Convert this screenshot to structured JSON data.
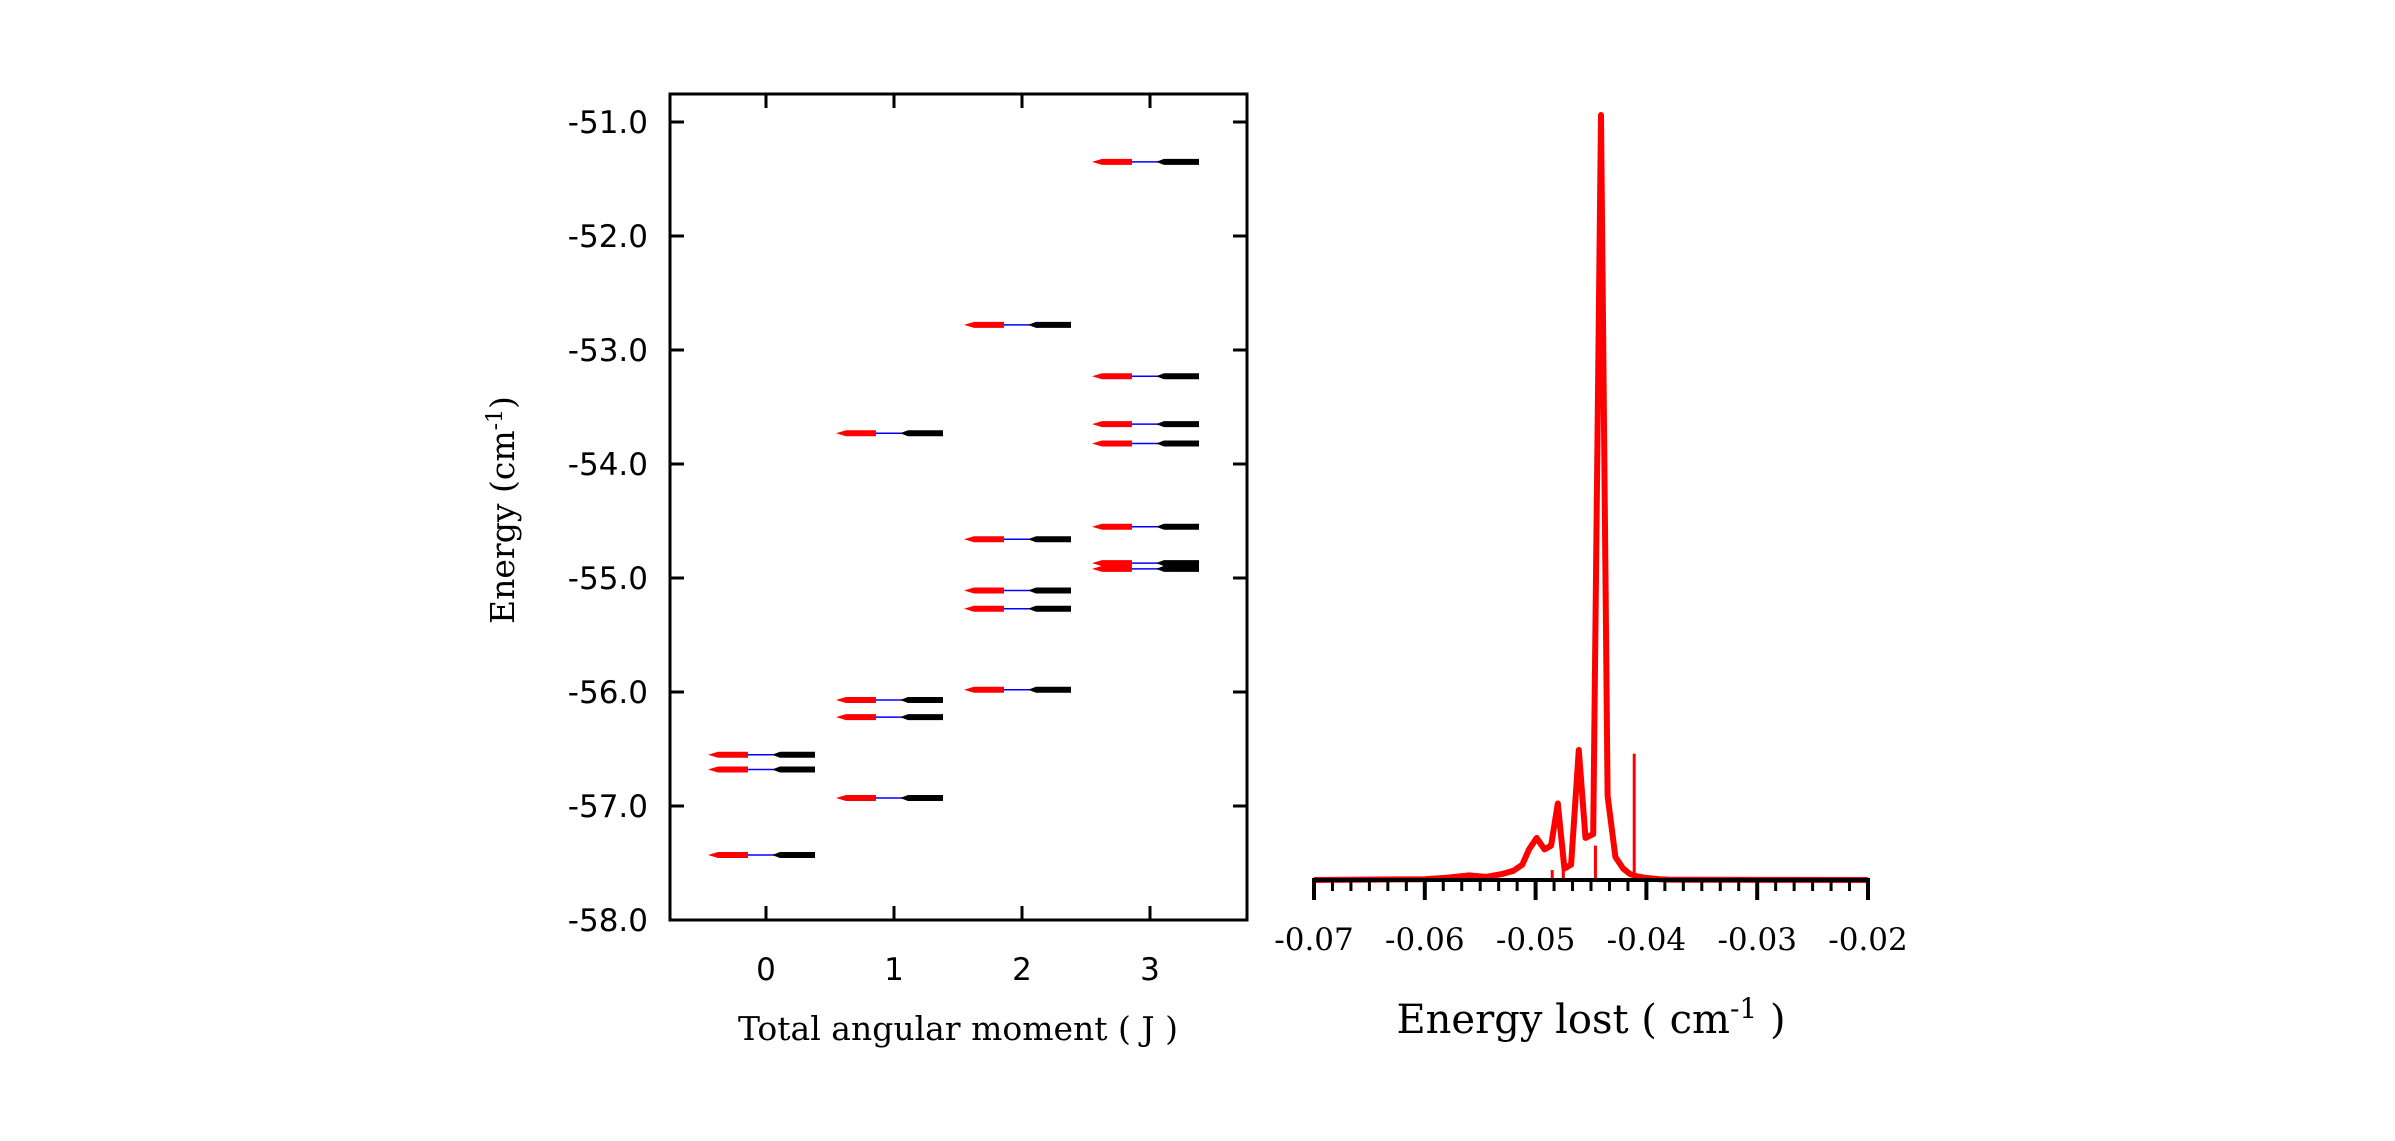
{
  "colors": {
    "red": "#ff0000",
    "black": "#000000",
    "blue": "#0000ff"
  },
  "chart_data": [
    {
      "type": "scatter",
      "xlabel": "Total angular moment ( J )",
      "ylabel": {
        "text": "Energy (cm",
        "sup": "-1",
        "tail": ")"
      },
      "ylim": [
        -58.0,
        -50.75
      ],
      "xlim": [
        -0.75,
        3.75
      ],
      "x_ticks": [
        "0",
        "1",
        "2",
        "3"
      ],
      "y_ticks": [
        "-51.0",
        "-52.0",
        "-53.0",
        "-54.0",
        "-55.0",
        "-56.0",
        "-57.0",
        "-58.0"
      ],
      "grid": false,
      "levels": [
        {
          "J": 0,
          "red": -56.55,
          "black": -56.55
        },
        {
          "J": 0,
          "red": -56.68,
          "black": -56.68
        },
        {
          "J": 0,
          "red": -57.43,
          "black": -57.43
        },
        {
          "J": 1,
          "red": -53.73,
          "black": -53.73
        },
        {
          "J": 1,
          "red": -56.07,
          "black": -56.07
        },
        {
          "J": 1,
          "red": -56.22,
          "black": -56.22
        },
        {
          "J": 1,
          "red": -56.93,
          "black": -56.93
        },
        {
          "J": 2,
          "red": -52.78,
          "black": -52.78
        },
        {
          "J": 2,
          "red": -54.66,
          "black": -54.66
        },
        {
          "J": 2,
          "red": -55.11,
          "black": -55.11
        },
        {
          "J": 2,
          "red": -55.27,
          "black": -55.27
        },
        {
          "J": 2,
          "red": -55.98,
          "black": -55.98
        },
        {
          "J": 3,
          "red": -51.35,
          "black": -51.35
        },
        {
          "J": 3,
          "red": -53.23,
          "black": -53.23
        },
        {
          "J": 3,
          "red": -53.65,
          "black": -53.65
        },
        {
          "J": 3,
          "red": -53.82,
          "black": -53.82
        },
        {
          "J": 3,
          "red": -54.55,
          "black": -54.55
        },
        {
          "J": 3,
          "red": -54.87,
          "black": -54.87
        },
        {
          "J": 3,
          "red": -54.92,
          "black": -54.92
        }
      ]
    },
    {
      "type": "line",
      "xlabel": {
        "text": "Energy lost ( cm",
        "sup": "-1",
        "tail": " )"
      },
      "ylabel": "",
      "xlim": [
        -0.07,
        -0.02
      ],
      "ylim": [
        0,
        1
      ],
      "x_ticks": [
        "-0.07",
        "-0.06",
        "-0.05",
        "-0.04",
        "-0.03",
        "-0.02"
      ],
      "grid": false,
      "series": [
        {
          "x": [
            -0.07,
            -0.06,
            -0.058,
            -0.056,
            -0.0545,
            -0.053,
            -0.052,
            -0.0512,
            -0.0506,
            -0.0499,
            -0.0492,
            -0.0486,
            -0.048,
            -0.0474,
            -0.0468,
            -0.0461,
            -0.0455,
            -0.0448,
            -0.0441,
            -0.0435,
            -0.0428,
            -0.0421,
            -0.0415,
            -0.0409,
            -0.0402,
            -0.0395,
            -0.0388,
            -0.038,
            -0.037,
            -0.035,
            -0.03,
            -0.02
          ],
          "y": [
            0,
            0.001,
            0.003,
            0.006,
            0.004,
            0.008,
            0.012,
            0.02,
            0.04,
            0.055,
            0.04,
            0.045,
            0.1,
            0.015,
            0.02,
            0.17,
            0.055,
            0.06,
            1.0,
            0.11,
            0.03,
            0.015,
            0.008,
            0.005,
            0.003,
            0.002,
            0.001,
            0.0005,
            0.0003,
            0.0002,
            0.0001,
            0
          ]
        }
      ],
      "sticks": {
        "x": [
          -0.0485,
          -0.0475,
          -0.0446,
          -0.0411
        ],
        "y": [
          0.013,
          0.018,
          0.045,
          0.165
        ]
      }
    }
  ]
}
